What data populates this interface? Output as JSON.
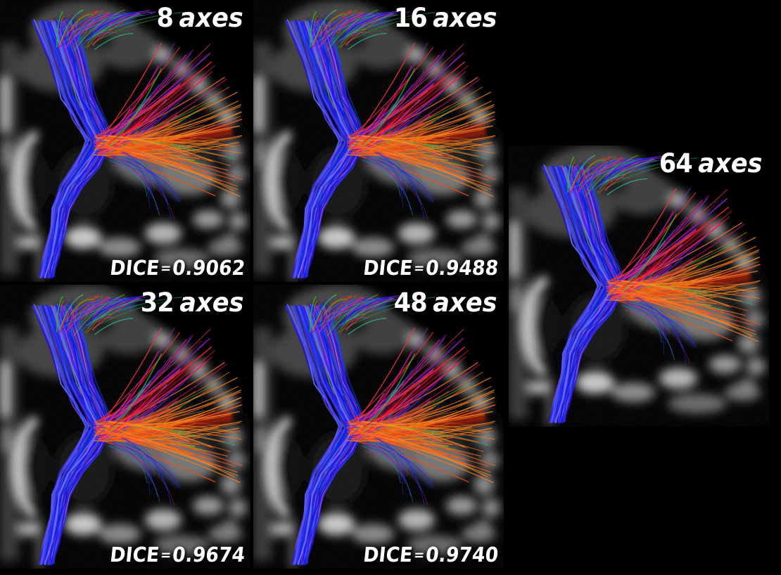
{
  "figure": {
    "background_color": "#000000",
    "text_color": "#ffffff",
    "panels": [
      {
        "label": "8 axes",
        "num": "8",
        "unit": "axes",
        "dice_label": "DICE",
        "dice_eq": "=",
        "dice_value": "0.9062"
      },
      {
        "label": "16 axes",
        "num": "16",
        "unit": "axes",
        "dice_label": "DICE",
        "dice_eq": "=",
        "dice_value": "0.9488"
      },
      {
        "label": "32 axes",
        "num": "32",
        "unit": "axes",
        "dice_label": "DICE",
        "dice_eq": "=",
        "dice_value": "0.9674"
      },
      {
        "label": "48 axes",
        "num": "48",
        "unit": "axes",
        "dice_label": "DICE",
        "dice_eq": "=",
        "dice_value": "0.9740"
      },
      {
        "label": "64 axes",
        "num": "64",
        "unit": "axes"
      }
    ],
    "colors": {
      "tract_blue": "#2222ee",
      "tract_red": "#ee2000",
      "tract_orange": "#ff7711",
      "tract_green": "#33aa44",
      "tract_purple": "#aa33bb",
      "mri_gray": "#8a8a8a"
    }
  }
}
